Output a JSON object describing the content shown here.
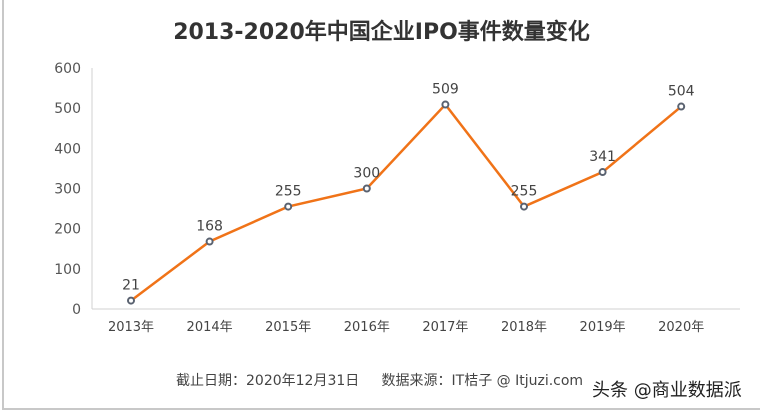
{
  "chart_data": {
    "type": "line",
    "title": "2013-2020年中国企业IPO事件数量变化",
    "categories": [
      "2013年",
      "2014年",
      "2015年",
      "2016年",
      "2017年",
      "2018年",
      "2019年",
      "2020年"
    ],
    "values": [
      21,
      168,
      255,
      300,
      509,
      255,
      341,
      504
    ],
    "ylim": [
      0,
      600
    ],
    "yticks": [
      0,
      100,
      200,
      300,
      400,
      500,
      600
    ],
    "xlabel": "",
    "ylabel": "",
    "grid": false,
    "line_color": "#f07318",
    "marker_color": "#5a6270"
  },
  "footer": {
    "note": "截止日期：2020年12月31日     数据来源：IT桔子 @ Itjuzi.com",
    "watermark": "头条 @商业数据派"
  }
}
